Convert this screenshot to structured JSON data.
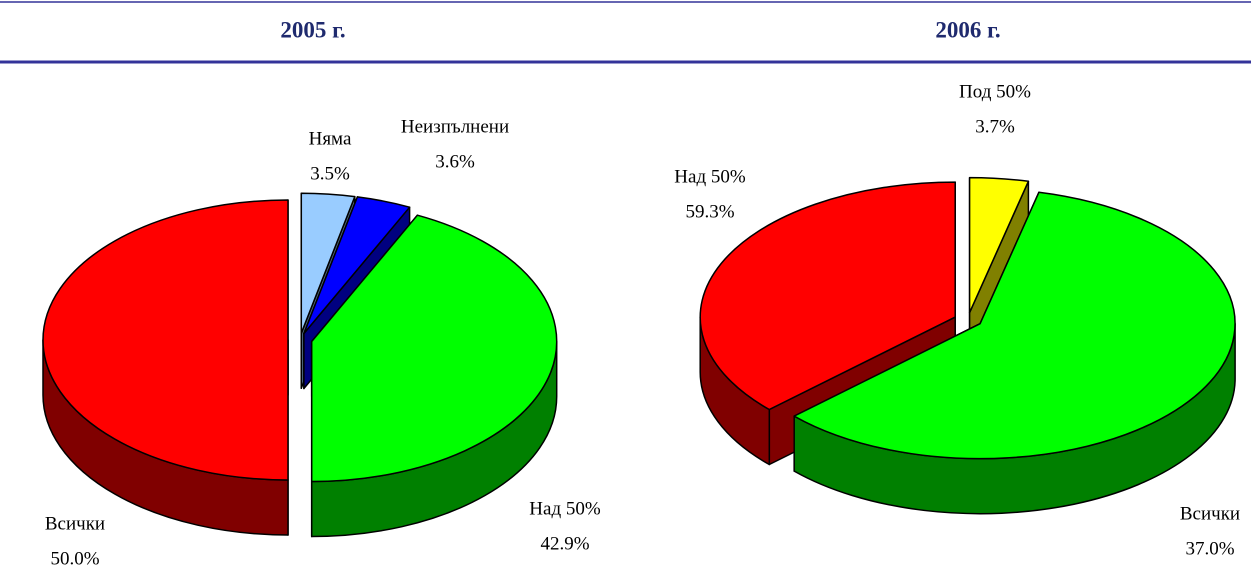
{
  "chart_data": [
    {
      "type": "pie3d",
      "title": "2005 г.",
      "categories": [
        "Няма",
        "Неизпълнени",
        "Над 50%",
        "Всички"
      ],
      "values": [
        3.5,
        3.6,
        42.9,
        50.0
      ],
      "value_labels": [
        "3.5%",
        "3.6%",
        "42.9%",
        "50.0%"
      ],
      "colors": [
        "#99ccff",
        "#0000ff",
        "#00ff00",
        "#ff0000"
      ]
    },
    {
      "type": "pie3d",
      "title": "2006 г.",
      "categories": [
        "Под 50%",
        "Над 50%",
        "Всички"
      ],
      "values": [
        3.7,
        59.3,
        37.0
      ],
      "value_labels": [
        "3.7%",
        "59.3%",
        "37.0%"
      ],
      "colors": [
        "#ffff00",
        "#00ff00",
        "#ff0000"
      ]
    }
  ]
}
